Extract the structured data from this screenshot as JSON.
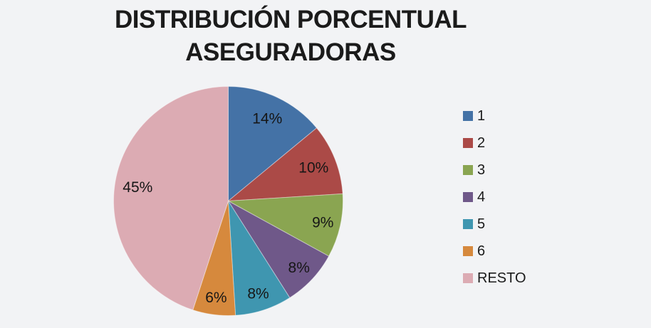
{
  "window": {
    "background": "#F2F3F5"
  },
  "chart_data": {
    "type": "pie",
    "title": "DISTRIBUCIÓN PORCENTUAL ASEGURADORAS",
    "title_lines": [
      "DISTRIBUCIÓN PORCENTUAL",
      "ASEGURADORAS"
    ],
    "categories": [
      "1",
      "2",
      "3",
      "4",
      "5",
      "6",
      "RESTO"
    ],
    "values": [
      14,
      10,
      9,
      8,
      8,
      6,
      45
    ],
    "slice_labels": [
      "14%",
      "10%",
      "9%",
      "8%",
      "8%",
      "6%",
      "45%"
    ],
    "colors": [
      "#4472A6",
      "#AB4A47",
      "#8AA551",
      "#6F5889",
      "#3F96B0",
      "#D6893D",
      "#DCABB3"
    ],
    "legend_position": "right",
    "start_angle": "12-o-clock",
    "direction": "clockwise",
    "title_color": "#1B1B1B",
    "label_color": "#161616"
  }
}
